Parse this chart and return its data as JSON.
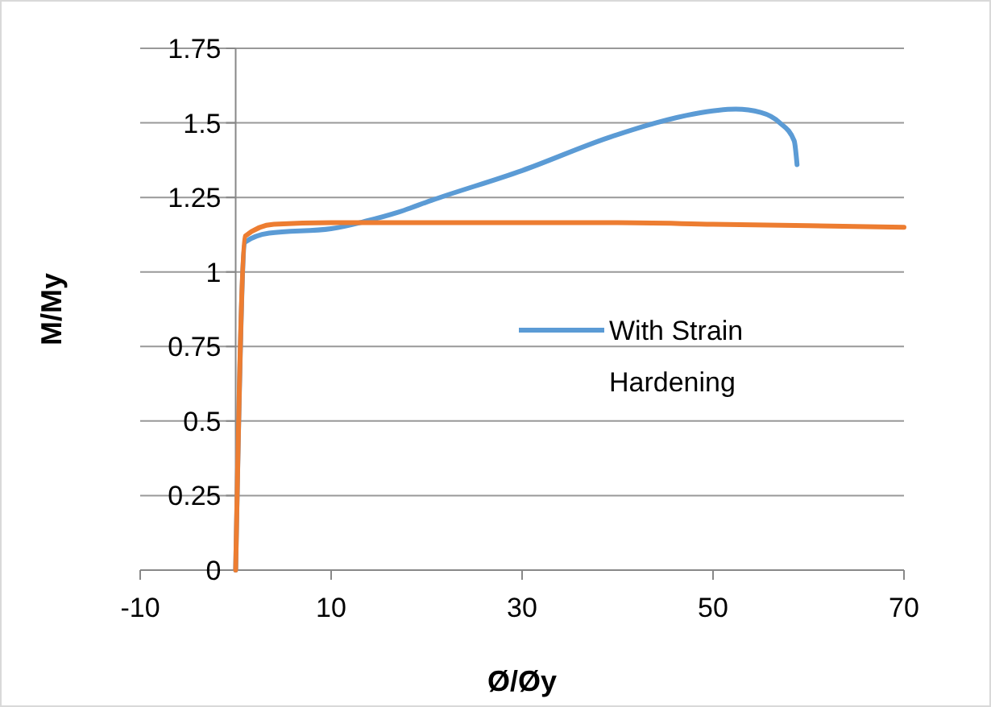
{
  "chart_data": {
    "type": "line",
    "xlabel": "Ø/Øy",
    "ylabel": "M/My",
    "xlim": [
      -10,
      70
    ],
    "xticks": [
      -10,
      10,
      30,
      50,
      70
    ],
    "ylim": [
      0,
      1.75
    ],
    "yticks": [
      0,
      0.25,
      0.5,
      0.75,
      1,
      1.25,
      1.5,
      1.75
    ],
    "grid": "y",
    "legend": "right",
    "marker": "none",
    "line_style": "solid",
    "series": [
      {
        "name": "With Strain Hardening",
        "color": "#5b9bd5",
        "x": [
          0,
          1,
          3.5,
          10,
          13.6,
          17,
          20.5,
          30,
          39,
          44,
          48,
          52.4,
          55,
          57,
          58.5,
          58.8
        ],
        "values": [
          0,
          1.1,
          1.13,
          1.145,
          1.17,
          1.2,
          1.24,
          1.34,
          1.45,
          1.5,
          1.53,
          1.546,
          1.535,
          1.5,
          1.44,
          1.36
        ]
      },
      {
        "color": "#ed7d31",
        "x": [
          0,
          1,
          4,
          10,
          40,
          50,
          70
        ],
        "values": [
          0,
          1.12,
          1.16,
          1.165,
          1.165,
          1.16,
          1.15
        ]
      }
    ]
  }
}
